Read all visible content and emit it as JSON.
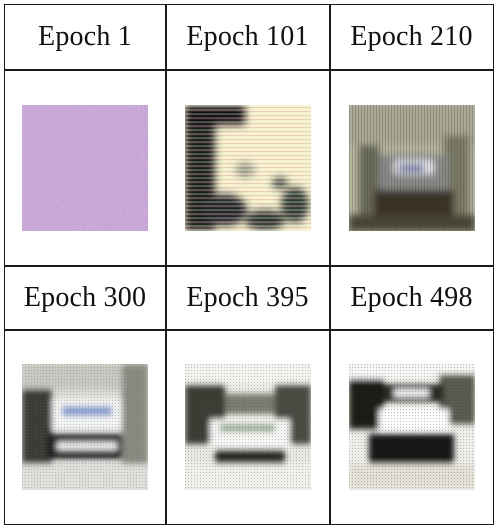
{
  "table": {
    "rows": [
      {
        "cells": [
          {
            "label": "Epoch 1",
            "image": "random-noise-thumbnail"
          },
          {
            "label": "Epoch 101",
            "image": "early-blob-thumbnail"
          },
          {
            "label": "Epoch 210",
            "image": "blurry-vehicle-thumbnail"
          }
        ]
      },
      {
        "cells": [
          {
            "label": "Epoch 300",
            "image": "vehicle-thumbnail"
          },
          {
            "label": "Epoch 395",
            "image": "vehicle-thumbnail"
          },
          {
            "label": "Epoch 498",
            "image": "vehicle-thumbnail"
          }
        ]
      }
    ]
  }
}
